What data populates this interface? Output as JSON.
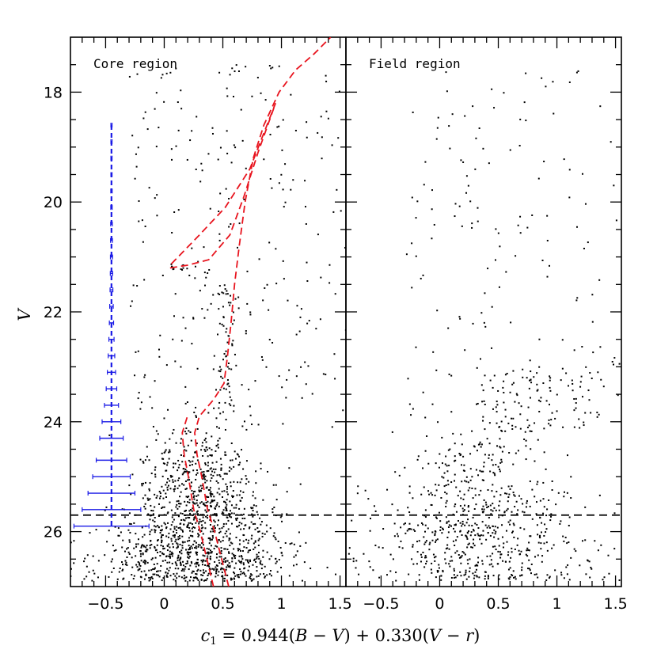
{
  "chart_data": {
    "type": "scatter",
    "xlabel": "c_1 = 0.944(B − V) + 0.330(V − r)",
    "xlabel_parts": {
      "c": "c",
      "sub": "1",
      "rest1": " = 0.944(",
      "B": "B",
      "rest2": " − ",
      "V1": "V",
      "rest3": ") + 0.330(",
      "V2": "V",
      "rest4": " − ",
      "r": "r",
      "rest5": ")"
    },
    "ylabel": "V",
    "ylim": [
      27.0,
      17.0
    ],
    "y_ticks": [
      18,
      20,
      22,
      24,
      26
    ],
    "y_tick_labels": [
      "18",
      "20",
      "22",
      "24",
      "26"
    ],
    "colors": {
      "points": "#000000",
      "isochrone": "#e8141e",
      "errorbars": "#1a1ae6",
      "limit_line": "#000000"
    },
    "panels": [
      {
        "label": "Core region",
        "xlim": [
          -0.8,
          1.55
        ],
        "x_ticks": [
          -0.5,
          0,
          0.5,
          1,
          1.5
        ],
        "x_tick_labels": [
          "−0.5",
          "0",
          "0.5",
          "1",
          "1.5"
        ],
        "completeness_limit_V": 25.7,
        "isochrone": [
          [
            0.55,
            27.0
          ],
          [
            0.49,
            26.5
          ],
          [
            0.43,
            26.0
          ],
          [
            0.37,
            25.6
          ],
          [
            0.32,
            25.0
          ],
          [
            0.28,
            24.6
          ],
          [
            0.26,
            24.2
          ],
          [
            0.3,
            23.9
          ],
          [
            0.42,
            23.6
          ],
          [
            0.51,
            23.3
          ],
          [
            0.54,
            22.8
          ],
          [
            0.57,
            22.2
          ],
          [
            0.6,
            21.5
          ],
          [
            0.64,
            20.8
          ],
          [
            0.69,
            20.0
          ],
          [
            0.76,
            19.2
          ],
          [
            0.85,
            18.6
          ],
          [
            0.98,
            18.0
          ],
          [
            1.12,
            17.6
          ],
          [
            1.28,
            17.3
          ],
          [
            1.42,
            17.0
          ]
        ],
        "horizontal_branch": [
          [
            0.05,
            21.2
          ],
          [
            0.2,
            21.15
          ],
          [
            0.38,
            21.05
          ],
          [
            0.56,
            20.6
          ],
          [
            0.68,
            19.9
          ],
          [
            0.8,
            19.1
          ],
          [
            0.9,
            18.5
          ],
          [
            0.95,
            18.2
          ],
          [
            0.73,
            19.4
          ],
          [
            0.52,
            20.1
          ],
          [
            0.3,
            20.6
          ],
          [
            0.05,
            21.15
          ]
        ],
        "error_bars": {
          "x_center": -0.45,
          "V": [
            18.6,
            18.9,
            19.2,
            19.5,
            19.8,
            20.1,
            20.4,
            20.7,
            21.0,
            21.3,
            21.6,
            21.9,
            22.2,
            22.5,
            22.8,
            23.1,
            23.4,
            23.7,
            24.0,
            24.3,
            24.7,
            25.0,
            25.3,
            25.6,
            25.9
          ],
          "err": [
            0.005,
            0.005,
            0.005,
            0.005,
            0.006,
            0.006,
            0.007,
            0.008,
            0.009,
            0.01,
            0.012,
            0.015,
            0.018,
            0.022,
            0.028,
            0.035,
            0.045,
            0.06,
            0.08,
            0.1,
            0.13,
            0.16,
            0.2,
            0.25,
            0.32
          ]
        }
      },
      {
        "label": "Field region",
        "xlim": [
          -0.8,
          1.55
        ],
        "x_ticks": [
          -0.5,
          0,
          0.5,
          1,
          1.5
        ],
        "x_tick_labels": [
          "−0.5",
          "0",
          "0.5",
          "1",
          "1.5"
        ],
        "completeness_limit_V": 25.7
      }
    ]
  }
}
